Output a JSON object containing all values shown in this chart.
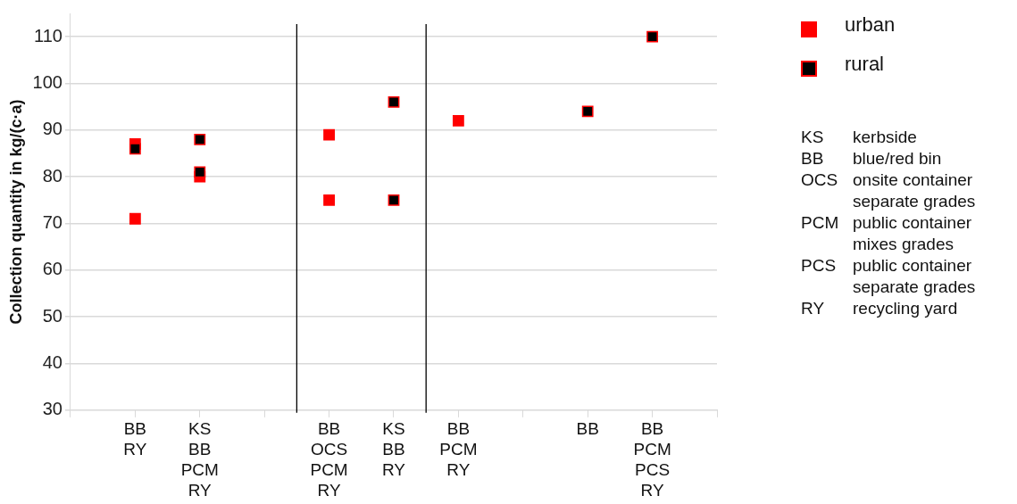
{
  "chart_data": {
    "type": "scatter",
    "ylabel": "Collection quantity in kg/(c·a)",
    "categories": [
      null,
      "BB\nRY",
      "KS\nBB\nPCM\nRY",
      null,
      "BB\nOCS\nPCM\nRY",
      "KS\nBB\nRY",
      "BB\nPCM\nRY",
      null,
      "BB",
      "BB\nPCM\nPCS\nRY",
      null
    ],
    "series": [
      {
        "name": "urban",
        "color": "#ff0000",
        "x": [
          "BB\nRY",
          "BB\nRY",
          "KS\nBB\nPCM\nRY",
          "BB\nOCS\nPCM\nRY",
          "BB\nOCS\nPCM\nRY",
          "BB\nPCM\nRY"
        ],
        "values": [
          87,
          71,
          80,
          89,
          75,
          92
        ]
      },
      {
        "name": "rural",
        "color": "#000000",
        "x": [
          "BB\nRY",
          "KS\nBB\nPCM\nRY",
          "KS\nBB\nPCM\nRY",
          "KS\nBB\nRY",
          "KS\nBB\nRY",
          "BB",
          "BB\nPCM\nPCS\nRY"
        ],
        "values": [
          86,
          88,
          81,
          96,
          75,
          94,
          110
        ]
      }
    ],
    "ylim": [
      30,
      115
    ],
    "yticks": [
      30,
      40,
      50,
      60,
      70,
      80,
      90,
      100,
      110
    ],
    "grid": "y",
    "marker": "square",
    "legend": "top right",
    "annotations": [
      "KS kerbside",
      "BB blue/red bin",
      "OCS onsite container separate grades",
      "PCM public container mixes grades",
      "PCS public container separate grades",
      "RY recycling yard"
    ]
  }
}
